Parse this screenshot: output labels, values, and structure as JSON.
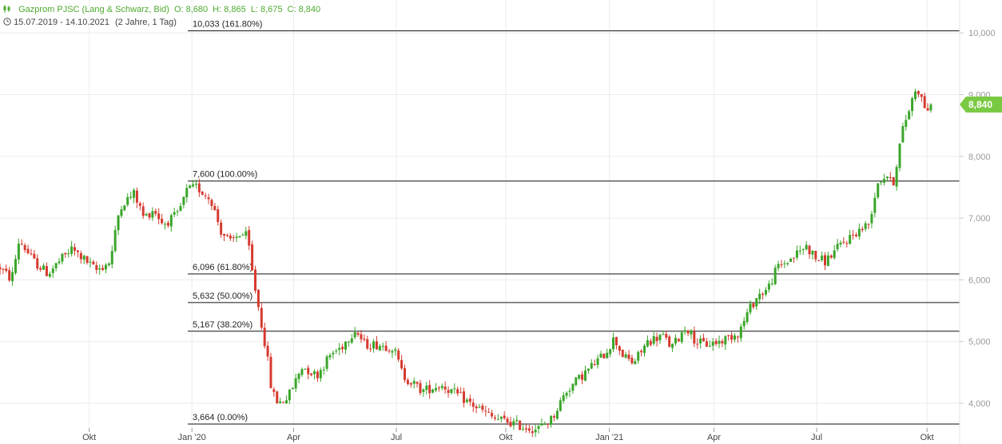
{
  "header": {
    "bars_icon": "candlestick-icon",
    "instrument": "Gazprom PJSC (Lang & Schwarz, Bid)",
    "open": "O: 8,680",
    "high": "H: 8,865",
    "low": "L: 8,675",
    "close": "C: 8,840",
    "clock_icon": "clock-icon",
    "date_range": "15.07.2019 - 14.10.2021",
    "period": "(2 Jahre, 1 Tag)"
  },
  "colors": {
    "up": "#3aa52a",
    "down": "#d63a2f",
    "accent": "#7ac943",
    "grid": "#ececec"
  },
  "chart_data": {
    "type": "candlestick",
    "y_ticks": [
      "4,000",
      "5,000",
      "6,000",
      "7,000",
      "8,000",
      "9,000",
      "10,000"
    ],
    "ylim": [
      3.6,
      10.5
    ],
    "x_ticks": [
      {
        "label": "Okt",
        "t": 0.093
      },
      {
        "label": "Jan '20",
        "t": 0.2
      },
      {
        "label": "Apr",
        "t": 0.306
      },
      {
        "label": "Jul",
        "t": 0.413
      },
      {
        "label": "Okt",
        "t": 0.527
      },
      {
        "label": "Jan '21",
        "t": 0.635
      },
      {
        "label": "Apr",
        "t": 0.744
      },
      {
        "label": "Jul",
        "t": 0.851
      },
      {
        "label": "Okt",
        "t": 0.966
      }
    ],
    "last_price": 8.84,
    "last_price_label": "8,840",
    "fib_levels": [
      {
        "value": 10.033,
        "label": "10,033 (161.80%)"
      },
      {
        "value": 7.6,
        "label": "7,600 (100.00%)"
      },
      {
        "value": 6.096,
        "label": "6,096 (61.80%)"
      },
      {
        "value": 5.632,
        "label": "5,632 (50.00%)"
      },
      {
        "value": 5.167,
        "label": "5,167 (38.20%)"
      },
      {
        "value": 3.664,
        "label": "3,664 (0.00%)"
      }
    ],
    "price_path": [
      [
        0.0,
        6.2
      ],
      [
        0.012,
        6.0
      ],
      [
        0.02,
        6.65
      ],
      [
        0.035,
        6.3
      ],
      [
        0.05,
        6.1
      ],
      [
        0.065,
        6.35
      ],
      [
        0.075,
        6.5
      ],
      [
        0.09,
        6.3
      ],
      [
        0.1,
        6.15
      ],
      [
        0.115,
        6.3
      ],
      [
        0.125,
        7.2
      ],
      [
        0.14,
        7.4
      ],
      [
        0.15,
        7.0
      ],
      [
        0.16,
        7.15
      ],
      [
        0.17,
        6.9
      ],
      [
        0.185,
        7.05
      ],
      [
        0.195,
        7.45
      ],
      [
        0.205,
        7.5
      ],
      [
        0.22,
        7.3
      ],
      [
        0.23,
        6.8
      ],
      [
        0.24,
        6.6
      ],
      [
        0.25,
        6.75
      ],
      [
        0.258,
        6.7
      ],
      [
        0.262,
        6.2
      ],
      [
        0.27,
        5.5
      ],
      [
        0.278,
        4.8
      ],
      [
        0.283,
        4.2
      ],
      [
        0.29,
        4.0
      ],
      [
        0.3,
        4.1
      ],
      [
        0.315,
        4.6
      ],
      [
        0.33,
        4.45
      ],
      [
        0.345,
        4.8
      ],
      [
        0.355,
        4.9
      ],
      [
        0.37,
        5.2
      ],
      [
        0.38,
        4.95
      ],
      [
        0.395,
        4.95
      ],
      [
        0.41,
        4.9
      ],
      [
        0.42,
        4.45
      ],
      [
        0.44,
        4.2
      ],
      [
        0.46,
        4.3
      ],
      [
        0.48,
        4.1
      ],
      [
        0.5,
        3.9
      ],
      [
        0.515,
        3.75
      ],
      [
        0.53,
        3.7
      ],
      [
        0.545,
        3.62
      ],
      [
        0.56,
        3.58
      ],
      [
        0.575,
        3.75
      ],
      [
        0.59,
        4.2
      ],
      [
        0.61,
        4.5
      ],
      [
        0.63,
        4.8
      ],
      [
        0.64,
        5.05
      ],
      [
        0.65,
        4.75
      ],
      [
        0.66,
        4.65
      ],
      [
        0.675,
        5.0
      ],
      [
        0.69,
        5.1
      ],
      [
        0.7,
        4.9
      ],
      [
        0.715,
        5.25
      ],
      [
        0.725,
        5.0
      ],
      [
        0.735,
        4.95
      ],
      [
        0.75,
        5.0
      ],
      [
        0.77,
        5.15
      ],
      [
        0.78,
        5.5
      ],
      [
        0.79,
        5.75
      ],
      [
        0.8,
        5.85
      ],
      [
        0.81,
        6.2
      ],
      [
        0.825,
        6.35
      ],
      [
        0.84,
        6.55
      ],
      [
        0.85,
        6.35
      ],
      [
        0.86,
        6.3
      ],
      [
        0.875,
        6.55
      ],
      [
        0.89,
        6.75
      ],
      [
        0.905,
        6.9
      ],
      [
        0.915,
        7.6
      ],
      [
        0.925,
        7.7
      ],
      [
        0.93,
        7.5
      ],
      [
        0.94,
        8.4
      ],
      [
        0.955,
        9.15
      ],
      [
        0.965,
        8.75
      ],
      [
        0.97,
        8.84
      ]
    ]
  }
}
